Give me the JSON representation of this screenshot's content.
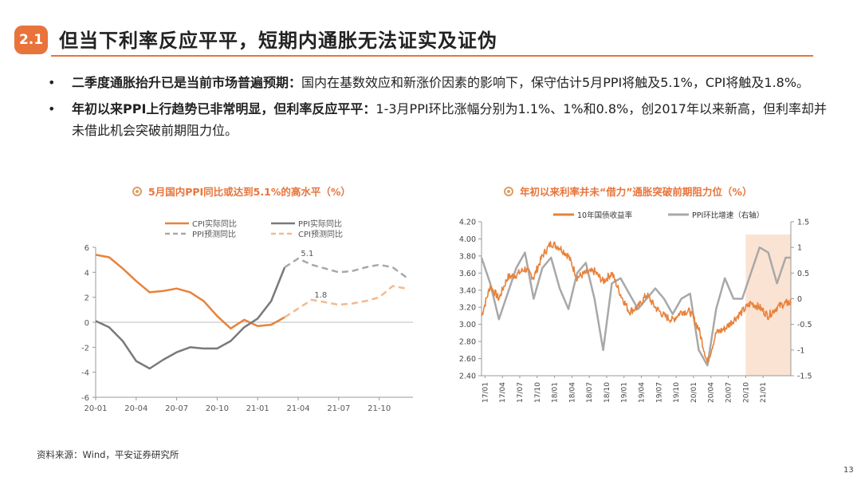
{
  "section": {
    "number": "2.1",
    "title": "但当下利率反应平平，短期内通胀无法证实及证伪"
  },
  "bullets": [
    {
      "bold": "二季度通胀抬升已是当前市场普遍预期：",
      "text": "国内在基数效应和新涨价因素的影响下，保守估计5月PPI将触及5.1%，CPI将触及1.8%。"
    },
    {
      "bold": "年初以来PPI上行趋势已非常明显，但利率反应平平：",
      "text": "1-3月PPI环比涨幅分别为1.1%、1%和0.8%，创2017年以来新高，但利率却并未借此机会突破前期阻力位。"
    }
  ],
  "colors": {
    "accent": "#e8743b",
    "orange": "#e8823b",
    "gray": "#7a7a7a",
    "lightgray": "#a8a8a8",
    "lightorange": "#f5b98c",
    "shade": "#fbe3d3"
  },
  "chart_data": [
    {
      "type": "line",
      "title": "5月国内PPI同比或达到5.1%的高水平（%）",
      "x_ticks": [
        "20-01",
        "20-04",
        "20-07",
        "20-10",
        "21-01",
        "21-04",
        "21-07",
        "21-10"
      ],
      "ylim": [
        -6,
        6
      ],
      "y_ticks": [
        "6",
        "4",
        "2",
        "0",
        "-2",
        "-4",
        "-6"
      ],
      "legend": [
        "CPI实际同比",
        "PPI实际同比",
        "PPI预测同比",
        "CPI预测同比"
      ],
      "series": [
        {
          "name": "CPI实际同比",
          "x": [
            0,
            1,
            2,
            3,
            4,
            5,
            6,
            7,
            8,
            9,
            10,
            11,
            12,
            13,
            14
          ],
          "values": [
            5.4,
            5.2,
            4.3,
            3.3,
            2.4,
            2.5,
            2.7,
            2.4,
            1.7,
            0.5,
            -0.5,
            0.2,
            -0.3,
            -0.2,
            0.4
          ]
        },
        {
          "name": "PPI实际同比",
          "x": [
            0,
            1,
            2,
            3,
            4,
            5,
            6,
            7,
            8,
            9,
            10,
            11,
            12,
            13,
            14
          ],
          "values": [
            0.1,
            -0.4,
            -1.5,
            -3.1,
            -3.7,
            -3.0,
            -2.4,
            -2.0,
            -2.1,
            -2.1,
            -1.5,
            -0.4,
            0.3,
            1.7,
            4.4
          ]
        },
        {
          "name": "PPI预测同比",
          "x": [
            14,
            15,
            16,
            17,
            18,
            19,
            20,
            21,
            22,
            23
          ],
          "values": [
            4.4,
            5.1,
            4.6,
            4.3,
            4.0,
            4.1,
            4.4,
            4.6,
            4.4,
            3.6
          ]
        },
        {
          "name": "CPI预测同比",
          "x": [
            14,
            15,
            16,
            17,
            18,
            19,
            20,
            21,
            22,
            23
          ],
          "values": [
            0.4,
            1.1,
            1.8,
            1.6,
            1.4,
            1.5,
            1.7,
            2.0,
            2.9,
            2.7
          ]
        }
      ],
      "annotations": [
        {
          "text": "5.1",
          "x": 15.2,
          "y": 5.1
        },
        {
          "text": "1.8",
          "x": 16.2,
          "y": 1.8
        }
      ]
    },
    {
      "type": "line",
      "title": "年初以来利率并未“借力”通胀突破前期阻力位（%）",
      "x_ticks": [
        "17/01",
        "17/04",
        "17/07",
        "17/10",
        "18/01",
        "18/04",
        "18/07",
        "18/10",
        "19/01",
        "19/04",
        "19/07",
        "19/10",
        "20/01",
        "20/04",
        "20/07",
        "20/10",
        "21/01"
      ],
      "ylim_left": [
        2.4,
        4.2
      ],
      "y_ticks_left": [
        "4.20",
        "4.00",
        "3.80",
        "3.60",
        "3.40",
        "3.20",
        "3.00",
        "2.80",
        "2.60",
        "2.40"
      ],
      "ylim_right": [
        -1.5,
        1.5
      ],
      "y_ticks_right": [
        "1.5",
        "1",
        "0.5",
        "0",
        "-0.5",
        "-1",
        "-1.5"
      ],
      "legend": [
        "10年国债收益率",
        "PPI环比增速（右轴）"
      ],
      "shaded_range": {
        "from": 15.2,
        "to": 17.8
      },
      "series": [
        {
          "name": "10年国债收益率",
          "axis": "left",
          "x": [
            0,
            0.5,
            1,
            1.5,
            2,
            2.5,
            3,
            3.5,
            4,
            4.5,
            5,
            5.5,
            6,
            6.5,
            7,
            7.5,
            8,
            8.5,
            9,
            9.5,
            10,
            10.5,
            11,
            11.5,
            12,
            12.5,
            13,
            13.5,
            14,
            14.5,
            15,
            15.5,
            16,
            16.5,
            17,
            17.5,
            17.8
          ],
          "values": [
            3.1,
            3.45,
            3.3,
            3.55,
            3.58,
            3.65,
            3.55,
            3.8,
            3.95,
            3.9,
            3.8,
            3.55,
            3.6,
            3.62,
            3.5,
            3.6,
            3.35,
            3.15,
            3.2,
            3.35,
            3.2,
            3.1,
            3.05,
            3.15,
            3.15,
            2.95,
            2.55,
            2.9,
            2.95,
            3.05,
            3.15,
            3.25,
            3.2,
            3.1,
            3.2,
            3.25,
            3.25
          ]
        },
        {
          "name": "PPI环比增速（右轴）",
          "axis": "right",
          "x": [
            0,
            0.5,
            1,
            1.5,
            2,
            2.5,
            3,
            3.5,
            4,
            4.5,
            5,
            5.5,
            6,
            6.5,
            7,
            7.5,
            8,
            8.5,
            9,
            9.5,
            10,
            10.5,
            11,
            11.5,
            12,
            12.5,
            13,
            13.5,
            14,
            14.5,
            15,
            15.5,
            16,
            16.5,
            17,
            17.5,
            17.8
          ],
          "values": [
            0.8,
            0.3,
            -0.4,
            0.1,
            0.6,
            0.9,
            0.0,
            0.6,
            0.8,
            0.2,
            -0.2,
            0.5,
            0.7,
            0.0,
            -1.0,
            0.3,
            0.4,
            0.1,
            -0.2,
            0.0,
            0.2,
            0.0,
            -0.3,
            0.0,
            0.1,
            -1.0,
            -1.3,
            -0.2,
            0.4,
            0.0,
            0.0,
            0.5,
            1.0,
            0.9,
            0.3,
            0.8,
            0.8
          ]
        }
      ]
    }
  ],
  "source": "资料来源：Wind，平安证券研究所",
  "page_number": "13"
}
